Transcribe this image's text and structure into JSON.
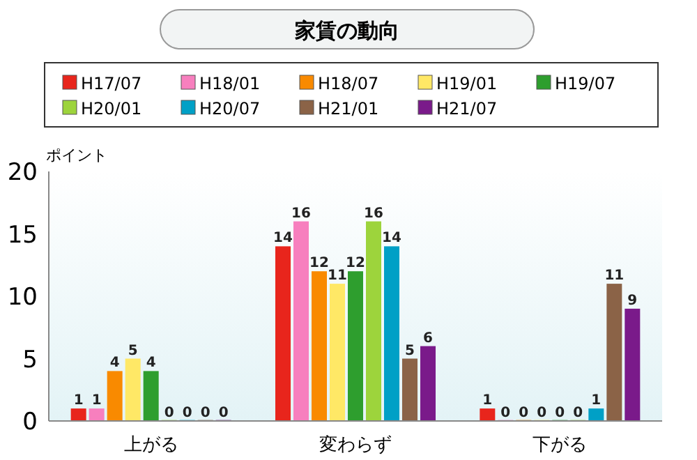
{
  "chart_data": {
    "type": "bar",
    "title": "家賃の動向",
    "ylabel": "ポイント",
    "categories": [
      "上がる",
      "変わらず",
      "下がる"
    ],
    "series": [
      {
        "name": "H17/07",
        "color": "#e8251c",
        "values": [
          1,
          14,
          1
        ]
      },
      {
        "name": "H18/01",
        "color": "#f77fbe",
        "values": [
          1,
          16,
          0
        ]
      },
      {
        "name": "H18/07",
        "color": "#f98a00",
        "values": [
          4,
          12,
          0
        ]
      },
      {
        "name": "H19/01",
        "color": "#ffe866",
        "values": [
          5,
          11,
          0
        ]
      },
      {
        "name": "H19/07",
        "color": "#2e9e2e",
        "values": [
          4,
          12,
          0
        ]
      },
      {
        "name": "H20/01",
        "color": "#9dd43c",
        "values": [
          0,
          16,
          0
        ]
      },
      {
        "name": "H20/07",
        "color": "#00a0c6",
        "values": [
          0,
          14,
          1
        ]
      },
      {
        "name": "H21/01",
        "color": "#8b6347",
        "values": [
          0,
          5,
          11
        ]
      },
      {
        "name": "H21/07",
        "color": "#7a1a8a",
        "values": [
          0,
          6,
          9
        ]
      }
    ],
    "ylim": [
      0,
      20
    ],
    "yticks": [
      0,
      5,
      10,
      15,
      20
    ],
    "data_labels": true,
    "legend": "top",
    "grid": false
  }
}
